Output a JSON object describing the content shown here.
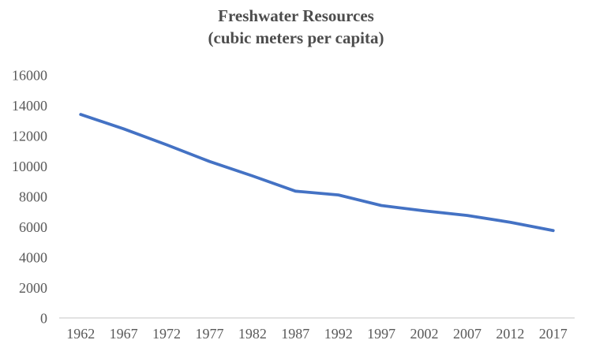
{
  "chart_data": {
    "type": "line",
    "title": "Freshwater Resources",
    "subtitle": "(cubic meters per capita)",
    "categories": [
      "1962",
      "1967",
      "1972",
      "1977",
      "1982",
      "1987",
      "1992",
      "1997",
      "2002",
      "2007",
      "2012",
      "2017"
    ],
    "series": [
      {
        "name": "Freshwater resources per capita",
        "values": [
          13400,
          12450,
          11400,
          10300,
          9350,
          8350,
          8100,
          7400,
          7050,
          6750,
          6300,
          5750
        ]
      }
    ],
    "y_ticks": [
      16000,
      14000,
      12000,
      10000,
      8000,
      6000,
      4000,
      2000,
      0
    ],
    "ylim": [
      0,
      16000
    ],
    "grid": false,
    "legend": "none",
    "colors": {
      "line": "#4472C4",
      "axis": "#D9D9D9",
      "tick_label": "#595959",
      "title": "#4d4d4d"
    }
  }
}
